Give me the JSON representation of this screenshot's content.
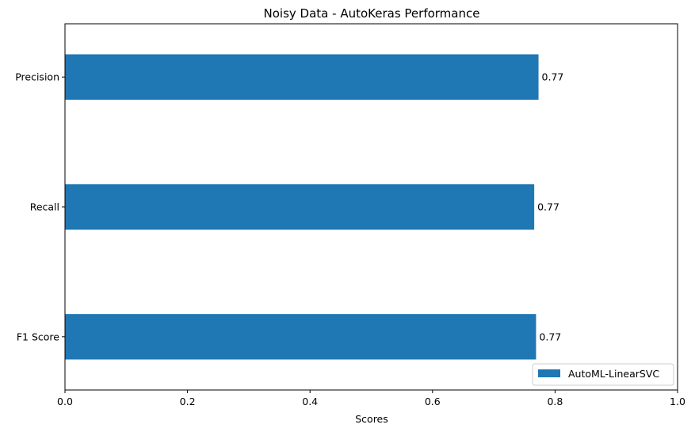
{
  "chart_data": {
    "type": "bar",
    "orientation": "horizontal",
    "title": "Noisy Data - AutoKeras Performance",
    "xlabel": "Scores",
    "ylabel": "",
    "xlim": [
      0,
      1
    ],
    "xticks": [
      0.0,
      0.2,
      0.4,
      0.6,
      0.8,
      1.0
    ],
    "xtick_labels": [
      "0.0",
      "0.2",
      "0.4",
      "0.6",
      "0.8",
      "1.0"
    ],
    "categories": [
      "Precision",
      "Recall",
      "F1 Score"
    ],
    "series": [
      {
        "name": "AutoML-LinearSVC",
        "values": [
          0.773,
          0.766,
          0.769
        ],
        "value_labels": [
          "0.77",
          "0.77",
          "0.77"
        ],
        "color": "#1f77b4"
      }
    ],
    "legend_position": "bottom-right",
    "grid": false
  }
}
